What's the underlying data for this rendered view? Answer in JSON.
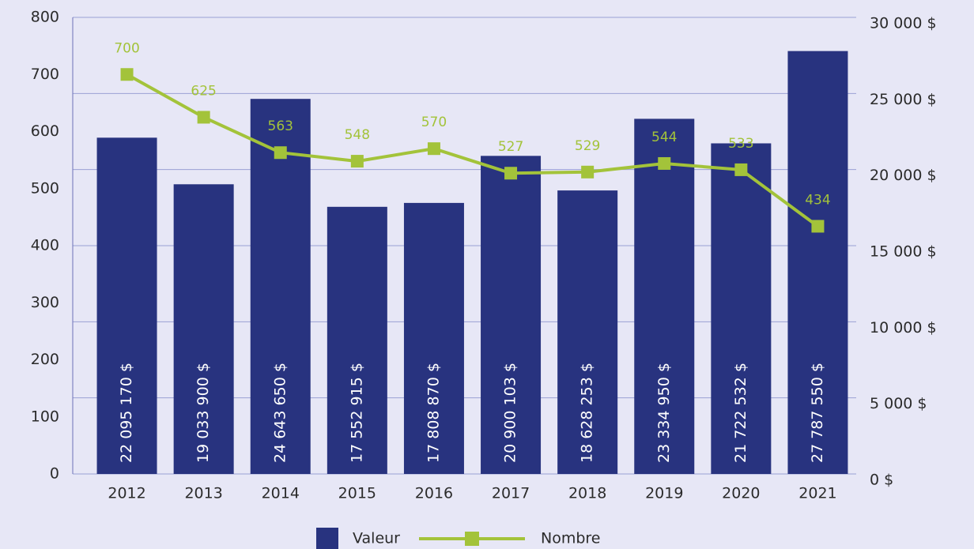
{
  "chart_data": {
    "type": "bar-line",
    "categories": [
      "2012",
      "2013",
      "2014",
      "2015",
      "2016",
      "2017",
      "2018",
      "2019",
      "2020",
      "2021"
    ],
    "series": [
      {
        "name": "Valeur",
        "type": "bar",
        "axis": "y2",
        "color": "#28337f",
        "values": [
          22095.17,
          19033.9,
          24643.65,
          17552.915,
          17808.87,
          20900.103,
          18628.253,
          23334.95,
          21722.532,
          27787.55
        ],
        "value_labels": [
          "22 095 170 $",
          "19 033 900 $",
          "24 643 650 $",
          "17 552 915 $",
          "17 808 870 $",
          "20 900 103 $",
          "18 628 253 $",
          "23 334 950 $",
          "21 722 532 $",
          "27 787 550 $"
        ]
      },
      {
        "name": "Nombre",
        "type": "line",
        "axis": "y",
        "color": "#a3c33a",
        "values": [
          700,
          625,
          563,
          548,
          570,
          527,
          529,
          544,
          533,
          434
        ]
      }
    ],
    "ylim": [
      0,
      800
    ],
    "yticks": [
      0,
      100,
      200,
      300,
      400,
      500,
      600,
      700,
      800
    ],
    "y2lim": [
      0,
      30000
    ],
    "y2ticks": [
      {
        "value": 0,
        "label": "0 $"
      },
      {
        "value": 5000,
        "label": "5 000 $"
      },
      {
        "value": 10000,
        "label": "10 000 $"
      },
      {
        "value": 15000,
        "label": "15 000 $"
      },
      {
        "value": 20000,
        "label": "20 000 $"
      },
      {
        "value": 25000,
        "label": "25 000 $"
      },
      {
        "value": 30000,
        "label": "30 000 $"
      }
    ],
    "grid": true,
    "legend": "bottom"
  }
}
